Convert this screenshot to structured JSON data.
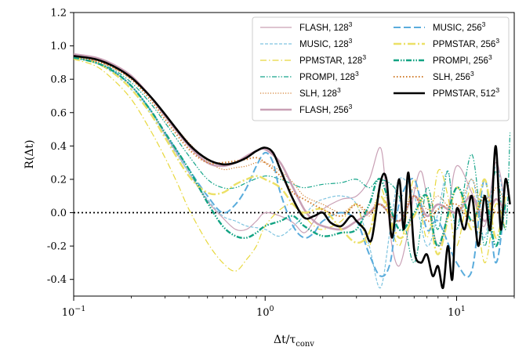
{
  "chart_data": {
    "type": "line",
    "xscale": "log",
    "xlim": [
      0.1,
      20
    ],
    "ylim": [
      -0.5,
      1.2
    ],
    "yticks": [
      "-0.4",
      "-0.2",
      "0.0",
      "0.2",
      "0.4",
      "0.6",
      "0.8",
      "1.0",
      "1.2"
    ],
    "ytick_values": [
      -0.4,
      -0.2,
      0.0,
      0.2,
      0.4,
      0.6,
      0.8,
      1.0,
      1.2
    ],
    "xticks": [
      {
        "value": 0.1,
        "base": "10",
        "exp": "−1"
      },
      {
        "value": 1,
        "base": "10",
        "exp": "0"
      },
      {
        "value": 10,
        "base": "10",
        "exp": "1"
      }
    ],
    "xlabel": "Δt/τ",
    "xlabel_sub": "conv",
    "ylabel": "R(Δt)",
    "legend_placement": "top-right",
    "reference_line": {
      "y": 0.0,
      "style": "dotted"
    },
    "series": [
      {
        "name": "FLASH, 128",
        "exp": "3",
        "color": "#c9a0b5",
        "dash": "",
        "width": 1.2,
        "x": [
          0.1,
          0.13,
          0.16,
          0.2,
          0.25,
          0.3,
          0.4,
          0.5,
          0.6,
          0.7,
          0.8,
          0.9,
          1.0,
          1.2,
          1.4,
          1.6,
          1.8,
          2.0,
          2.5,
          3.0,
          3.5,
          4.0,
          4.3,
          4.6,
          5.0,
          5.5,
          6.0,
          6.5,
          7.0,
          8.0,
          9.0,
          10,
          12,
          14,
          16,
          18
        ],
        "y": [
          0.93,
          0.9,
          0.85,
          0.76,
          0.62,
          0.47,
          0.24,
          0.07,
          -0.03,
          -0.1,
          -0.1,
          -0.05,
          0.0,
          -0.02,
          -0.06,
          -0.12,
          -0.05,
          0.02,
          0.08,
          0.1,
          0.2,
          0.39,
          0.1,
          -0.2,
          -0.32,
          -0.15,
          0.12,
          0.25,
          0.1,
          -0.2,
          0.0,
          0.28,
          0.12,
          -0.08,
          0.3,
          0.05
        ]
      },
      {
        "name": "MUSIC, 128",
        "exp": "3",
        "color": "#7fc4e0",
        "dash": "4,2",
        "width": 1.2,
        "x": [
          0.1,
          0.13,
          0.16,
          0.2,
          0.25,
          0.3,
          0.4,
          0.5,
          0.6,
          0.7,
          0.8,
          1.0,
          1.2,
          1.5,
          1.8,
          2.0,
          2.5,
          3.0,
          3.5,
          4.0,
          4.5,
          5.0,
          6.0,
          7.0,
          8.0,
          9.0,
          10,
          12,
          14,
          16,
          18
        ],
        "y": [
          0.93,
          0.9,
          0.84,
          0.74,
          0.6,
          0.46,
          0.24,
          0.08,
          -0.02,
          -0.05,
          -0.08,
          -0.1,
          -0.14,
          -0.05,
          0.05,
          0.08,
          0.1,
          0.05,
          -0.2,
          -0.45,
          -0.1,
          0.2,
          0.1,
          -0.2,
          0.0,
          0.25,
          -0.1,
          0.2,
          -0.15,
          0.28,
          0.0
        ]
      },
      {
        "name": "PPMSTAR, 128",
        "exp": "3",
        "color": "#e8d83c",
        "dash": "8,3,1.5,3",
        "width": 1.2,
        "x": [
          0.1,
          0.13,
          0.16,
          0.2,
          0.25,
          0.3,
          0.35,
          0.4,
          0.5,
          0.6,
          0.7,
          0.8,
          0.9,
          1.0,
          1.2,
          1.4,
          1.6,
          1.8,
          2.0,
          2.5,
          3.0,
          3.5,
          4.0,
          5.0,
          6.0,
          7.0,
          8.0,
          9.0,
          10,
          12,
          14,
          16,
          18
        ],
        "y": [
          0.92,
          0.88,
          0.8,
          0.68,
          0.5,
          0.33,
          0.17,
          0.02,
          -0.18,
          -0.3,
          -0.35,
          -0.28,
          -0.2,
          -0.08,
          0.02,
          0.05,
          -0.02,
          -0.08,
          -0.1,
          -0.05,
          0.05,
          -0.2,
          0.15,
          -0.2,
          0.2,
          -0.15,
          0.25,
          0.1,
          -0.2,
          0.15,
          -0.3,
          0.05,
          -0.1
        ]
      },
      {
        "name": "PROMPI, 128",
        "exp": "3",
        "color": "#16a58a",
        "dash": "6,2,1.5,2,1.5,2",
        "width": 1.2,
        "x": [
          0.1,
          0.13,
          0.16,
          0.2,
          0.25,
          0.3,
          0.4,
          0.5,
          0.6,
          0.7,
          0.8,
          1.0,
          1.2,
          1.4,
          1.6,
          2.0,
          2.5,
          3.0,
          3.5,
          4.0,
          5.0,
          6.0,
          7.0,
          8.0,
          9.0,
          10,
          12,
          14,
          16,
          18,
          19
        ],
        "y": [
          0.93,
          0.9,
          0.86,
          0.78,
          0.66,
          0.54,
          0.34,
          0.2,
          0.15,
          0.15,
          0.18,
          0.22,
          0.2,
          0.17,
          0.15,
          0.17,
          0.18,
          0.2,
          0.15,
          0.2,
          0.1,
          -0.3,
          0.15,
          -0.1,
          0.25,
          -0.1,
          0.35,
          -0.2,
          0.25,
          -0.1,
          0.48
        ]
      },
      {
        "name": "SLH, 128",
        "exp": "3",
        "color": "#d27d2d",
        "dash": "1.2,2",
        "width": 1.2,
        "x": [
          0.1,
          0.13,
          0.16,
          0.2,
          0.25,
          0.3,
          0.4,
          0.5,
          0.6,
          0.7,
          0.8,
          0.9,
          1.0,
          1.2,
          1.4,
          1.6,
          2.0,
          2.5,
          3.0,
          3.5,
          4.0,
          5.0,
          6.0,
          7.0,
          8.0,
          10,
          12,
          14,
          16,
          18
        ],
        "y": [
          0.93,
          0.91,
          0.87,
          0.8,
          0.7,
          0.59,
          0.42,
          0.31,
          0.26,
          0.27,
          0.28,
          0.3,
          0.3,
          0.25,
          0.18,
          0.1,
          0.05,
          0.0,
          0.05,
          -0.02,
          0.1,
          -0.05,
          0.15,
          0.02,
          0.1,
          0.0,
          0.2,
          -0.05,
          0.15,
          0.05
        ]
      },
      {
        "name": "FLASH, 256",
        "exp": "3",
        "color": "#c9a0b5",
        "dash": "",
        "width": 2.6,
        "x": [
          0.1,
          0.13,
          0.16,
          0.2,
          0.25,
          0.3,
          0.4,
          0.5,
          0.6,
          0.7,
          0.8,
          0.9,
          1.0,
          1.2,
          1.4,
          1.6,
          1.8,
          2.0,
          2.5,
          3.0,
          3.5,
          4.0,
          5.0,
          6.0,
          7.0,
          8.0,
          10,
          12,
          14,
          16,
          18
        ],
        "y": [
          0.95,
          0.93,
          0.89,
          0.82,
          0.7,
          0.58,
          0.4,
          0.3,
          0.28,
          0.3,
          0.34,
          0.37,
          0.38,
          0.3,
          0.15,
          0.02,
          -0.05,
          -0.08,
          -0.1,
          -0.05,
          0.0,
          0.05,
          -0.05,
          0.1,
          -0.02,
          0.05,
          0.0,
          0.1,
          -0.05,
          0.08,
          0.0
        ]
      },
      {
        "name": "MUSIC, 256",
        "exp": "3",
        "color": "#5aacdc",
        "dash": "9,4",
        "width": 2.0,
        "x": [
          0.1,
          0.13,
          0.16,
          0.2,
          0.25,
          0.3,
          0.4,
          0.5,
          0.6,
          0.7,
          0.8,
          0.9,
          1.0,
          1.1,
          1.2,
          1.4,
          1.6,
          1.8,
          2.0,
          2.5,
          3.0,
          3.5,
          4.0,
          4.5,
          5.0,
          6.0,
          7.0,
          8.0,
          10,
          12,
          14,
          16,
          18
        ],
        "y": [
          0.93,
          0.9,
          0.85,
          0.76,
          0.62,
          0.48,
          0.26,
          0.1,
          0.0,
          0.05,
          0.15,
          0.28,
          0.36,
          0.3,
          0.12,
          -0.08,
          -0.15,
          -0.12,
          -0.05,
          0.0,
          -0.05,
          -0.25,
          -0.38,
          -0.3,
          0.05,
          0.2,
          -0.1,
          -0.05,
          -0.3,
          -0.35,
          0.2,
          -0.3,
          0.1
        ]
      },
      {
        "name": "PPMSTAR, 256",
        "exp": "3",
        "color": "#ece066",
        "dash": "10,3,2,3",
        "width": 2.4,
        "x": [
          0.1,
          0.13,
          0.16,
          0.2,
          0.25,
          0.3,
          0.4,
          0.5,
          0.6,
          0.7,
          0.8,
          0.9,
          1.0,
          1.2,
          1.4,
          1.6,
          2.0,
          2.5,
          3.0,
          3.5,
          4.0,
          5.0,
          6.0,
          7.0,
          8.0,
          10,
          12,
          14,
          16,
          18
        ],
        "y": [
          0.93,
          0.9,
          0.84,
          0.74,
          0.6,
          0.45,
          0.22,
          0.12,
          0.12,
          0.17,
          0.2,
          0.22,
          0.2,
          0.15,
          0.05,
          0.0,
          0.02,
          -0.1,
          -0.18,
          -0.12,
          0.1,
          -0.15,
          -0.02,
          0.1,
          -0.25,
          0.15,
          -0.1,
          0.2,
          -0.15,
          0.1
        ]
      },
      {
        "name": "PROMPI, 256",
        "exp": "3",
        "color": "#12a383",
        "dash": "7,2,1.5,2,1.5,2",
        "width": 2.4,
        "x": [
          0.1,
          0.13,
          0.16,
          0.2,
          0.25,
          0.3,
          0.4,
          0.5,
          0.6,
          0.7,
          0.8,
          0.9,
          1.0,
          1.2,
          1.4,
          1.6,
          2.0,
          2.5,
          3.0,
          3.5,
          4.0,
          5.0,
          6.0,
          7.0,
          8.0,
          10,
          12,
          14,
          16,
          18
        ],
        "y": [
          0.93,
          0.9,
          0.85,
          0.76,
          0.62,
          0.48,
          0.26,
          0.06,
          -0.08,
          -0.14,
          -0.15,
          -0.12,
          -0.08,
          -0.05,
          -0.02,
          -0.08,
          -0.14,
          -0.12,
          -0.1,
          0.05,
          0.2,
          -0.1,
          0.0,
          0.1,
          -0.2,
          0.15,
          -0.05,
          0.1,
          -0.2,
          0.05
        ]
      },
      {
        "name": "SLH, 256",
        "exp": "3",
        "color": "#d27d2d",
        "dash": "1.5,2.5",
        "width": 2.0,
        "x": [
          0.1,
          0.13,
          0.16,
          0.2,
          0.25,
          0.3,
          0.4,
          0.5,
          0.6,
          0.7,
          0.8,
          0.9,
          1.0,
          1.2,
          1.4,
          1.6,
          2.0,
          2.5,
          3.0,
          3.5,
          4.0,
          5.0,
          6.0,
          7.0,
          8.0,
          10,
          12,
          14,
          16,
          18
        ],
        "y": [
          0.94,
          0.91,
          0.87,
          0.8,
          0.68,
          0.56,
          0.38,
          0.3,
          0.3,
          0.31,
          0.32,
          0.33,
          0.3,
          0.22,
          0.12,
          0.08,
          0.02,
          -0.02,
          0.05,
          0.0,
          0.05,
          -0.05,
          0.1,
          -0.05,
          0.02,
          0.05,
          -0.05,
          0.1,
          0.0,
          0.05
        ]
      },
      {
        "name": "PPMSTAR, 512",
        "exp": "3",
        "color": "#000000",
        "dash": "",
        "width": 2.6,
        "x": [
          0.1,
          0.13,
          0.16,
          0.2,
          0.25,
          0.3,
          0.4,
          0.5,
          0.6,
          0.7,
          0.8,
          0.9,
          1.0,
          1.1,
          1.2,
          1.4,
          1.6,
          1.8,
          2.0,
          2.2,
          2.5,
          2.8,
          3.0,
          3.3,
          3.6,
          4.0,
          4.3,
          4.6,
          5.0,
          5.3,
          5.6,
          6.0,
          6.5,
          7.0,
          7.5,
          8.0,
          8.5,
          9.0,
          9.5,
          10,
          11,
          12,
          13,
          14,
          15,
          16,
          17,
          18,
          19
        ],
        "y": [
          0.94,
          0.92,
          0.88,
          0.81,
          0.7,
          0.59,
          0.41,
          0.32,
          0.29,
          0.3,
          0.33,
          0.37,
          0.39,
          0.36,
          0.26,
          0.08,
          -0.03,
          -0.02,
          0.0,
          -0.06,
          -0.08,
          -0.02,
          -0.05,
          -0.1,
          -0.16,
          0.18,
          0.2,
          -0.15,
          0.2,
          -0.1,
          0.24,
          -0.22,
          -0.3,
          -0.25,
          -0.38,
          -0.32,
          -0.45,
          -0.2,
          -0.4,
          0.02,
          -0.1,
          0.1,
          -0.2,
          0.1,
          -0.1,
          0.4,
          -0.1,
          0.2,
          0.05
        ]
      }
    ]
  }
}
